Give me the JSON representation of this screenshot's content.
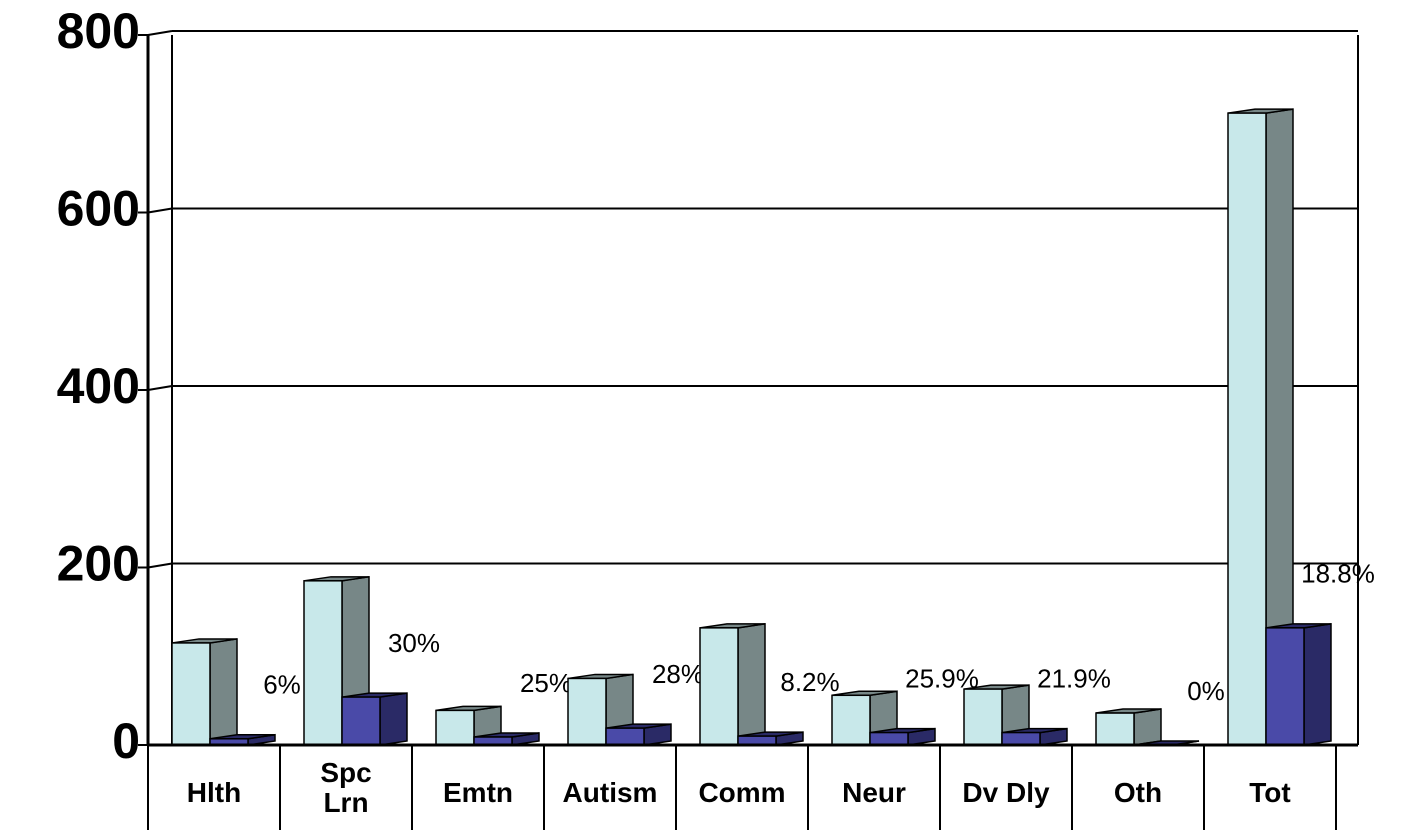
{
  "chart_data": {
    "type": "bar3d",
    "categories": [
      "Hlth",
      "Spc\nLrn",
      "Emtn",
      "Autism",
      "Comm",
      "Neur",
      "Dv Dly",
      "Oth",
      "Tot"
    ],
    "series": [
      {
        "color": "#c8e8ea",
        "side_color": "#778787",
        "values": [
          115,
          185,
          39,
          75,
          132,
          56,
          63,
          36,
          712
        ]
      },
      {
        "color": "#4a4aa8",
        "side_color": "#2a2a66",
        "values": [
          7,
          54,
          9,
          19,
          10,
          14,
          14,
          0,
          132
        ]
      }
    ],
    "percent_labels": [
      "6%",
      "30%",
      "25%",
      "28%",
      "8.2%",
      "25.9%",
      "21.9%",
      "0%",
      "18.8%"
    ],
    "ylim": [
      0,
      800
    ],
    "yticks": [
      0,
      200,
      400,
      600,
      800
    ],
    "grid": true
  }
}
